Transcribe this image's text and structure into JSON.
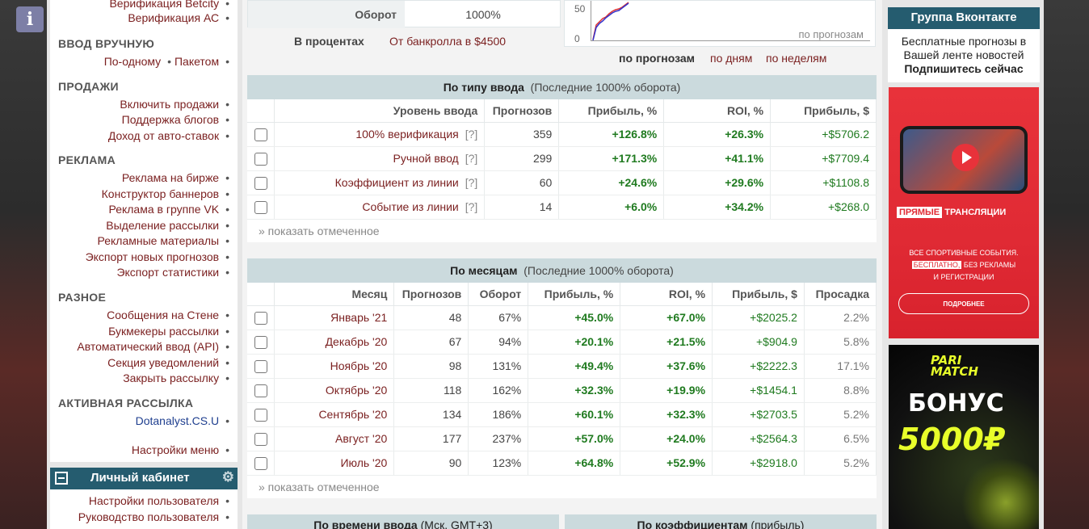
{
  "sidebar": {
    "top_items": [
      "Верификация Betcity",
      "Верификация АС"
    ],
    "sections": [
      {
        "title": "ВВОД ВРУЧНУЮ",
        "items": [
          "По-одному",
          "Пакетом"
        ]
      },
      {
        "title": "ПРОДАЖИ",
        "items": [
          "Включить продажи",
          "Поддержка блогов",
          "Доход от авто-ставок"
        ]
      },
      {
        "title": "РЕКЛАМА",
        "items": [
          "Реклама на бирже",
          "Конструктор баннеров",
          "Реклама в группе VK",
          "Выделение рассылки",
          "Рекламные материалы",
          "Экспорт новых прогнозов",
          "Экспорт статистики"
        ]
      },
      {
        "title": "РАЗНОЕ",
        "items": [
          "Сообщения на Стене",
          "Букмекеры рассылки",
          "Автоматический ввод (API)",
          "Секция уведомлений",
          "Закрыть рассылку"
        ]
      },
      {
        "title": "АКТИВНАЯ РАССЫЛКА",
        "items": [
          "Dotanalyst.CS.U"
        ]
      }
    ],
    "menu_settings": "Настройки меню",
    "bullet": "•",
    "cabinet": {
      "title": "Личный кабинет",
      "items": [
        "Настройки пользователя",
        "Руководство пользователя"
      ]
    }
  },
  "summary": {
    "turnover_label": "Оборот",
    "turnover_value": "1000%",
    "percent_label": "В процентах",
    "bankroll_link": "От банкролла в $4500"
  },
  "mini_chart": {
    "y_ticks": [
      "50",
      "0"
    ],
    "caption": "по прогнозам",
    "links": [
      "по прогнозам",
      "по дням",
      "по неделям"
    ]
  },
  "by_type": {
    "title": "По типу ввода",
    "subtitle": "(Последние 1000% оборота)",
    "columns": [
      "Уровень ввода",
      "Прогнозов",
      "Прибыль, %",
      "ROI, %",
      "Прибыль, $"
    ],
    "rows": [
      {
        "name": "100% верификация",
        "q": "[?]",
        "count": "359",
        "profit_pct": "+126.8%",
        "roi": "+26.3%",
        "profit_usd": "+$5706.2"
      },
      {
        "name": "Ручной ввод",
        "q": "[?]",
        "count": "299",
        "profit_pct": "+171.3%",
        "roi": "+41.1%",
        "profit_usd": "+$7709.4"
      },
      {
        "name": "Коэффициент из линии",
        "q": "[?]",
        "count": "60",
        "profit_pct": "+24.6%",
        "roi": "+29.6%",
        "profit_usd": "+$1108.8"
      },
      {
        "name": "Событие из линии",
        "q": "[?]",
        "count": "14",
        "profit_pct": "+6.0%",
        "roi": "+34.2%",
        "profit_usd": "+$268.0"
      }
    ],
    "show_marked": "» показать отмеченное"
  },
  "by_month": {
    "title": "По месяцам",
    "subtitle": "(Последние 1000% оборота)",
    "columns": [
      "Месяц",
      "Прогнозов",
      "Оборот",
      "Прибыль, %",
      "ROI, %",
      "Прибыль, $",
      "Просадка"
    ],
    "rows": [
      {
        "month": "Январь '21",
        "count": "48",
        "turnover": "67%",
        "profit_pct": "+45.0%",
        "roi": "+67.0%",
        "profit_usd": "+$2025.2",
        "drawdown": "2.2%"
      },
      {
        "month": "Декабрь '20",
        "count": "67",
        "turnover": "94%",
        "profit_pct": "+20.1%",
        "roi": "+21.5%",
        "profit_usd": "+$904.9",
        "drawdown": "5.8%"
      },
      {
        "month": "Ноябрь '20",
        "count": "98",
        "turnover": "131%",
        "profit_pct": "+49.4%",
        "roi": "+37.6%",
        "profit_usd": "+$2222.3",
        "drawdown": "17.1%"
      },
      {
        "month": "Октябрь '20",
        "count": "118",
        "turnover": "162%",
        "profit_pct": "+32.3%",
        "roi": "+19.9%",
        "profit_usd": "+$1454.1",
        "drawdown": "8.8%"
      },
      {
        "month": "Сентябрь '20",
        "count": "134",
        "turnover": "186%",
        "profit_pct": "+60.1%",
        "roi": "+32.3%",
        "profit_usd": "+$2703.5",
        "drawdown": "5.2%"
      },
      {
        "month": "Август '20",
        "count": "177",
        "turnover": "237%",
        "profit_pct": "+57.0%",
        "roi": "+24.0%",
        "profit_usd": "+$2564.3",
        "drawdown": "6.5%"
      },
      {
        "month": "Июль '20",
        "count": "90",
        "turnover": "123%",
        "profit_pct": "+64.8%",
        "roi": "+52.9%",
        "profit_usd": "+$2918.0",
        "drawdown": "5.2%"
      }
    ],
    "show_marked": "» показать отмеченное"
  },
  "bottom_panels": {
    "time_title": "По времени ввода",
    "time_sub": "(Мск, GMT+3)",
    "odds_title": "По коэффициентам",
    "odds_sub": "(прибыль)"
  },
  "vk": {
    "title": "Группа Вконтакте",
    "line1": "Бесплатные прогнозы в",
    "line2": "Вашей ленте новостей",
    "cta": "Подпишитесь сейчас"
  },
  "ad_red": {
    "headline_hl": "ПРЯМЫЕ",
    "headline": "ТРАНСЛЯЦИИ",
    "line1": "ВСЕ СПОРТИВНЫЕ СОБЫТИЯ.",
    "line2_hl": "БЕСПЛАТНО,",
    "line2": "БЕЗ РЕКЛАМЫ",
    "line3": "И РЕГИСТРАЦИИ",
    "button": "ПОДРОБНЕЕ"
  },
  "ad_black": {
    "logo1": "PARI",
    "logo2": "MATCH",
    "bonus": "БОНУС",
    "amount": "5000₽"
  },
  "colors": {
    "header_teal": "#255c6f",
    "link_maroon": "#7a1f1f",
    "positive_green": "#1f7a1f",
    "panel_head": "#cbdadd"
  },
  "icons": [
    "info-icon",
    "minus-icon",
    "gear-icon",
    "play-icon"
  ]
}
